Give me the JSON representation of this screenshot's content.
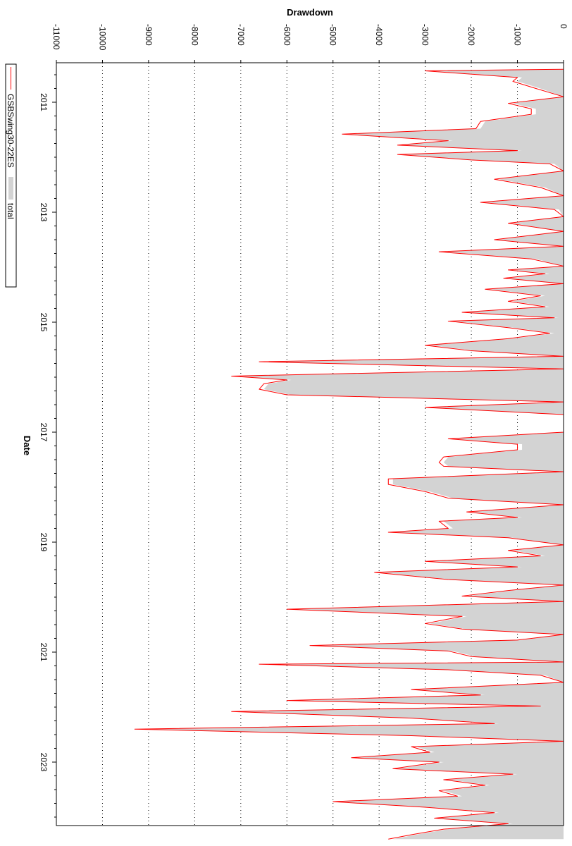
{
  "chart_data": {
    "type": "area",
    "orientation": "rotated-90",
    "ylabel": "Drawdown",
    "xlabel": "Date",
    "ylim": [
      -11000,
      0
    ],
    "xlim": [
      2010.3,
      2024.5
    ],
    "grid": "horizontal-dotted",
    "legend_placement": "left",
    "y_ticks": [
      "-11000",
      "-10000",
      "-9000",
      "-8000",
      "-7000",
      "-6000",
      "-5000",
      "-4000",
      "-3000",
      "-2000",
      "-1000",
      "0"
    ],
    "x_ticks": [
      "2011",
      "2013",
      "2015",
      "2017",
      "2019",
      "2021",
      "2023"
    ],
    "colors": {
      "strategy": "#ff0000",
      "total": "#d3d3d3"
    },
    "legend": [
      {
        "label": "GSBSwing30-22ES",
        "style": "line",
        "color": "#ff0000"
      },
      {
        "label": "total",
        "style": "fill",
        "color": "#d3d3d3"
      }
    ],
    "series": [
      {
        "name": "GSBSwing30-22ES",
        "style": "line",
        "points": [
          [
            2010.4,
            -0.1
          ],
          [
            2010.43,
            -3000
          ],
          [
            2010.55,
            -1000
          ],
          [
            2010.62,
            -1100
          ],
          [
            2010.75,
            -600
          ],
          [
            2010.9,
            -0.1
          ],
          [
            2011.02,
            -1200
          ],
          [
            2011.12,
            -700
          ],
          [
            2011.22,
            -700
          ],
          [
            2011.35,
            -1800
          ],
          [
            2011.48,
            -1900
          ],
          [
            2011.58,
            -4800
          ],
          [
            2011.7,
            -2500
          ],
          [
            2011.78,
            -3600
          ],
          [
            2011.88,
            -1000
          ],
          [
            2011.95,
            -3600
          ],
          [
            2012.05,
            -2000
          ],
          [
            2012.12,
            -300
          ],
          [
            2012.25,
            -0.1
          ],
          [
            2012.4,
            -1500
          ],
          [
            2012.55,
            -500
          ],
          [
            2012.7,
            -0.1
          ],
          [
            2012.82,
            -1800
          ],
          [
            2012.95,
            -200
          ],
          [
            2013.08,
            -0.1
          ],
          [
            2013.2,
            -1200
          ],
          [
            2013.35,
            -0.1
          ],
          [
            2013.5,
            -1500
          ],
          [
            2013.62,
            -0.1
          ],
          [
            2013.72,
            -2700
          ],
          [
            2013.85,
            -700
          ],
          [
            2013.98,
            -0.1
          ],
          [
            2014.05,
            -1200
          ],
          [
            2014.12,
            -400
          ],
          [
            2014.2,
            -1300
          ],
          [
            2014.3,
            -0.1
          ],
          [
            2014.4,
            -1700
          ],
          [
            2014.52,
            -500
          ],
          [
            2014.62,
            -1200
          ],
          [
            2014.72,
            -400
          ],
          [
            2014.82,
            -2200
          ],
          [
            2014.92,
            -200
          ],
          [
            2014.98,
            -2500
          ],
          [
            2015.1,
            -1200
          ],
          [
            2015.2,
            -300
          ],
          [
            2015.3,
            -1200
          ],
          [
            2015.42,
            -3000
          ],
          [
            2015.52,
            -2000
          ],
          [
            2015.62,
            -0.1
          ],
          [
            2015.72,
            -6600
          ],
          [
            2015.85,
            -0.1
          ],
          [
            2015.98,
            -7200
          ],
          [
            2016.05,
            -6000
          ],
          [
            2016.12,
            -6500
          ],
          [
            2016.22,
            -6600
          ],
          [
            2016.32,
            -6000
          ],
          [
            2016.45,
            -0.1
          ],
          [
            2016.55,
            -3000
          ],
          [
            2016.68,
            -0.1
          ],
          [
            2016.78,
            -0.1
          ],
          [
            2017.0,
            -0.1
          ],
          [
            2017.12,
            -2500
          ],
          [
            2017.22,
            -1000
          ],
          [
            2017.32,
            -1000
          ],
          [
            2017.45,
            -2600
          ],
          [
            2017.55,
            -2700
          ],
          [
            2017.62,
            -2600
          ],
          [
            2017.72,
            -0.1
          ],
          [
            2017.85,
            -3800
          ],
          [
            2017.95,
            -3800
          ],
          [
            2018.08,
            -3000
          ],
          [
            2018.2,
            -2500
          ],
          [
            2018.32,
            -0.1
          ],
          [
            2018.45,
            -2100
          ],
          [
            2018.55,
            -1000
          ],
          [
            2018.62,
            -2700
          ],
          [
            2018.75,
            -2500
          ],
          [
            2018.82,
            -3800
          ],
          [
            2018.92,
            -1200
          ],
          [
            2019.05,
            -0.1
          ],
          [
            2019.15,
            -1200
          ],
          [
            2019.25,
            -500
          ],
          [
            2019.35,
            -3000
          ],
          [
            2019.45,
            -1000
          ],
          [
            2019.55,
            -4100
          ],
          [
            2019.68,
            -2500
          ],
          [
            2019.78,
            -0.1
          ],
          [
            2019.88,
            -1200
          ],
          [
            2019.98,
            -2200
          ],
          [
            2020.08,
            -0.1
          ],
          [
            2020.22,
            -6000
          ],
          [
            2020.35,
            -2200
          ],
          [
            2020.48,
            -3000
          ],
          [
            2020.58,
            -2200
          ],
          [
            2020.68,
            -0.1
          ],
          [
            2020.78,
            -1000
          ],
          [
            2020.88,
            -5500
          ],
          [
            2020.98,
            -2500
          ],
          [
            2021.08,
            -2000
          ],
          [
            2021.18,
            -0.1
          ],
          [
            2021.22,
            -6600
          ],
          [
            2021.32,
            -2500
          ],
          [
            2021.42,
            -500
          ],
          [
            2021.55,
            -0.1
          ],
          [
            2021.68,
            -3300
          ],
          [
            2021.78,
            -1800
          ],
          [
            2021.88,
            -6000
          ],
          [
            2021.98,
            -500
          ],
          [
            2022.08,
            -7200
          ],
          [
            2022.2,
            -3300
          ],
          [
            2022.3,
            -1500
          ],
          [
            2022.4,
            -9300
          ],
          [
            2022.52,
            -3300
          ],
          [
            2022.62,
            -0.1
          ],
          [
            2022.72,
            -3300
          ],
          [
            2022.82,
            -2900
          ],
          [
            2022.92,
            -4600
          ],
          [
            2023.0,
            -2700
          ],
          [
            2023.12,
            -3700
          ],
          [
            2023.22,
            -1100
          ],
          [
            2023.32,
            -2600
          ],
          [
            2023.42,
            -1700
          ],
          [
            2023.52,
            -2700
          ],
          [
            2023.62,
            -2300
          ],
          [
            2023.72,
            -5000
          ],
          [
            2023.82,
            -3000
          ],
          [
            2023.92,
            -1500
          ],
          [
            2024.02,
            -2800
          ],
          [
            2024.12,
            -1200
          ],
          [
            2024.22,
            -2600
          ],
          [
            2024.32,
            -3300
          ],
          [
            2024.4,
            -3800
          ]
        ]
      },
      {
        "name": "total",
        "style": "area",
        "points": [
          [
            2010.4,
            -0.1
          ],
          [
            2010.43,
            -2900
          ],
          [
            2010.55,
            -900
          ],
          [
            2010.62,
            -1000
          ],
          [
            2010.75,
            -500
          ],
          [
            2010.9,
            -0.1
          ],
          [
            2011.02,
            -1100
          ],
          [
            2011.12,
            -600
          ],
          [
            2011.22,
            -600
          ],
          [
            2011.35,
            -1700
          ],
          [
            2011.48,
            -1800
          ],
          [
            2011.58,
            -4700
          ],
          [
            2011.7,
            -2400
          ],
          [
            2011.78,
            -3500
          ],
          [
            2011.88,
            -900
          ],
          [
            2011.95,
            -3500
          ],
          [
            2012.05,
            -1900
          ],
          [
            2012.12,
            -200
          ],
          [
            2012.25,
            -0.1
          ],
          [
            2012.4,
            -1400
          ],
          [
            2012.55,
            -400
          ],
          [
            2012.7,
            -0.1
          ],
          [
            2012.82,
            -1700
          ],
          [
            2012.95,
            -100
          ],
          [
            2013.08,
            -0.1
          ],
          [
            2013.2,
            -1100
          ],
          [
            2013.35,
            -0.1
          ],
          [
            2013.5,
            -1400
          ],
          [
            2013.62,
            -0.1
          ],
          [
            2013.72,
            -2600
          ],
          [
            2013.85,
            -600
          ],
          [
            2013.98,
            -0.1
          ],
          [
            2014.05,
            -1100
          ],
          [
            2014.12,
            -300
          ],
          [
            2014.2,
            -1200
          ],
          [
            2014.3,
            -0.1
          ],
          [
            2014.4,
            -1600
          ],
          [
            2014.52,
            -400
          ],
          [
            2014.62,
            -1100
          ],
          [
            2014.72,
            -300
          ],
          [
            2014.82,
            -2100
          ],
          [
            2014.92,
            -100
          ],
          [
            2014.98,
            -2400
          ],
          [
            2015.1,
            -1100
          ],
          [
            2015.2,
            -200
          ],
          [
            2015.3,
            -1100
          ],
          [
            2015.42,
            -2900
          ],
          [
            2015.52,
            -1900
          ],
          [
            2015.62,
            -0.1
          ],
          [
            2015.72,
            -6500
          ],
          [
            2015.85,
            -0.1
          ],
          [
            2015.98,
            -7100
          ],
          [
            2016.05,
            -5900
          ],
          [
            2016.12,
            -6400
          ],
          [
            2016.22,
            -6500
          ],
          [
            2016.32,
            -5900
          ],
          [
            2016.45,
            -0.1
          ],
          [
            2016.55,
            -2900
          ],
          [
            2016.68,
            -0.1
          ],
          [
            2016.78,
            -0.1
          ],
          [
            2017.0,
            -0.1
          ],
          [
            2017.12,
            -2400
          ],
          [
            2017.22,
            -900
          ],
          [
            2017.32,
            -900
          ],
          [
            2017.45,
            -2500
          ],
          [
            2017.55,
            -2600
          ],
          [
            2017.62,
            -2500
          ],
          [
            2017.72,
            -0.1
          ],
          [
            2017.85,
            -3700
          ],
          [
            2017.95,
            -3700
          ],
          [
            2018.08,
            -2900
          ],
          [
            2018.2,
            -2400
          ],
          [
            2018.32,
            -0.1
          ],
          [
            2018.45,
            -2000
          ],
          [
            2018.55,
            -900
          ],
          [
            2018.62,
            -2600
          ],
          [
            2018.75,
            -2400
          ],
          [
            2018.82,
            -3700
          ],
          [
            2018.92,
            -1100
          ],
          [
            2019.05,
            -0.1
          ],
          [
            2019.15,
            -1100
          ],
          [
            2019.25,
            -400
          ],
          [
            2019.35,
            -2900
          ],
          [
            2019.45,
            -900
          ],
          [
            2019.55,
            -4000
          ],
          [
            2019.68,
            -2400
          ],
          [
            2019.78,
            -0.1
          ],
          [
            2019.88,
            -1100
          ],
          [
            2019.98,
            -2100
          ],
          [
            2020.08,
            -0.1
          ],
          [
            2020.22,
            -5900
          ],
          [
            2020.35,
            -2100
          ],
          [
            2020.48,
            -2900
          ],
          [
            2020.58,
            -2100
          ],
          [
            2020.68,
            -0.1
          ],
          [
            2020.78,
            -900
          ],
          [
            2020.88,
            -5400
          ],
          [
            2020.98,
            -2400
          ],
          [
            2021.08,
            -1900
          ],
          [
            2021.18,
            -0.1
          ],
          [
            2021.22,
            -6500
          ],
          [
            2021.32,
            -2400
          ],
          [
            2021.42,
            -400
          ],
          [
            2021.55,
            -0.1
          ],
          [
            2021.68,
            -3200
          ],
          [
            2021.78,
            -1700
          ],
          [
            2021.88,
            -5900
          ],
          [
            2021.98,
            -400
          ],
          [
            2022.08,
            -7100
          ],
          [
            2022.2,
            -3200
          ],
          [
            2022.3,
            -1400
          ],
          [
            2022.4,
            -9200
          ],
          [
            2022.52,
            -3200
          ],
          [
            2022.62,
            -0.1
          ],
          [
            2022.72,
            -3200
          ],
          [
            2022.82,
            -2800
          ],
          [
            2022.92,
            -4500
          ],
          [
            2023.0,
            -2600
          ],
          [
            2023.12,
            -3600
          ],
          [
            2023.22,
            -1000
          ],
          [
            2023.32,
            -2500
          ],
          [
            2023.42,
            -1600
          ],
          [
            2023.52,
            -2600
          ],
          [
            2023.62,
            -2200
          ],
          [
            2023.72,
            -4900
          ],
          [
            2023.82,
            -2900
          ],
          [
            2023.92,
            -1400
          ],
          [
            2024.02,
            -2700
          ],
          [
            2024.12,
            -1100
          ],
          [
            2024.22,
            -2500
          ],
          [
            2024.32,
            -3200
          ],
          [
            2024.4,
            -3700
          ]
        ]
      }
    ]
  }
}
